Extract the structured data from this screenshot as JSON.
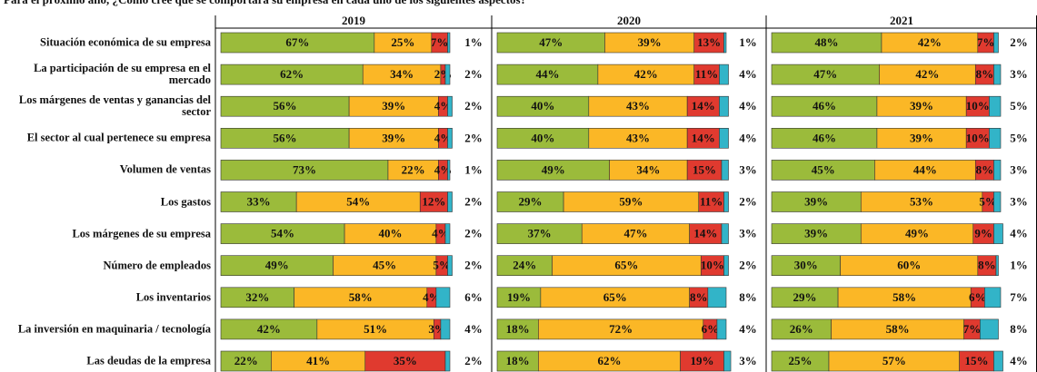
{
  "chart_data": {
    "type": "stacked_bar_h",
    "title": "Para el próximo año, ¿Cómo cree que se comportará su empresa en cada uno de los siguientes aspectos?",
    "categories": [
      "Situación económica de su empresa",
      "La participación de su empresa en el mercado",
      "Los márgenes de ventas y ganancias del sector",
      "El sector al cual pertenece su empresa",
      "Volumen de ventas",
      "Los gastos",
      "Los márgenes de su empresa",
      "Número de empleados",
      "Los inventarios",
      "La inversión en maquinaria / tecnología",
      "Las deudas de la empresa"
    ],
    "colors": [
      "#9bbb3b",
      "#fbb726",
      "#e03a2f",
      "#32b4c8"
    ],
    "panels": [
      {
        "title": "2019",
        "series": [
          {
            "values": [
              67,
              62,
              56,
              56,
              73,
              33,
              54,
              49,
              32,
              42,
              22
            ],
            "value_labels": [
              "67%",
              "62%",
              "56%",
              "56%",
              "73%",
              "33%",
              "54%",
              "49%",
              "32%",
              "42%",
              "22%"
            ]
          },
          {
            "values": [
              25,
              34,
              39,
              39,
              22,
              54,
              40,
              45,
              58,
              51,
              41
            ],
            "value_labels": [
              "25%",
              "34%",
              "39%",
              "39%",
              "22%",
              "54%",
              "40%",
              "45%",
              "58%",
              "51%",
              "41%"
            ]
          },
          {
            "values": [
              7,
              2,
              4,
              4,
              4,
              12,
              4,
              5,
              4,
              3,
              35
            ],
            "value_labels": [
              "7%",
              "2%",
              "4%",
              "4%",
              "4%",
              "12%",
              "4%",
              "5%",
              "4%",
              "3%",
              "35%"
            ]
          },
          {
            "values": [
              1,
              2,
              2,
              2,
              1,
              2,
              2,
              2,
              6,
              4,
              2
            ],
            "value_labels": [
              "1%",
              "2%",
              "2%",
              "2%",
              "1%",
              "2%",
              "2%",
              "2%",
              "6%",
              "4%",
              "2%"
            ]
          }
        ]
      },
      {
        "title": "2020",
        "series": [
          {
            "values": [
              47,
              44,
              40,
              40,
              49,
              29,
              37,
              24,
              19,
              18,
              18
            ],
            "value_labels": [
              "47%",
              "44%",
              "40%",
              "40%",
              "49%",
              "29%",
              "37%",
              "24%",
              "19%",
              "18%",
              "18%"
            ]
          },
          {
            "values": [
              39,
              42,
              43,
              43,
              34,
              59,
              47,
              65,
              65,
              72,
              62
            ],
            "value_labels": [
              "39%",
              "42%",
              "43%",
              "43%",
              "34%",
              "59%",
              "47%",
              "65%",
              "65%",
              "72%",
              "62%"
            ]
          },
          {
            "values": [
              13,
              11,
              14,
              14,
              15,
              11,
              14,
              10,
              8,
              6,
              19
            ],
            "value_labels": [
              "13%",
              "11%",
              "14%",
              "14%",
              "15%",
              "11%",
              "14%",
              "10%",
              "8%",
              "6%",
              "19%"
            ]
          },
          {
            "values": [
              1,
              4,
              4,
              4,
              3,
              2,
              3,
              2,
              8,
              4,
              3
            ],
            "value_labels": [
              "1%",
              "4%",
              "4%",
              "4%",
              "3%",
              "2%",
              "3%",
              "2%",
              "8%",
              "4%",
              "3%"
            ]
          }
        ]
      },
      {
        "title": "2021",
        "series": [
          {
            "values": [
              48,
              47,
              46,
              46,
              45,
              39,
              39,
              30,
              29,
              26,
              25
            ],
            "value_labels": [
              "48%",
              "47%",
              "46%",
              "46%",
              "45%",
              "39%",
              "39%",
              "30%",
              "29%",
              "26%",
              "25%"
            ]
          },
          {
            "values": [
              42,
              42,
              39,
              39,
              44,
              53,
              49,
              60,
              58,
              58,
              57
            ],
            "value_labels": [
              "42%",
              "42%",
              "39%",
              "39%",
              "44%",
              "53%",
              "49%",
              "60%",
              "58%",
              "58%",
              "57%"
            ]
          },
          {
            "values": [
              7,
              8,
              10,
              10,
              8,
              5,
              9,
              8,
              6,
              7,
              15
            ],
            "value_labels": [
              "7%",
              "8%",
              "10%",
              "10%",
              "8%",
              "5%",
              "9%",
              "8%",
              "6%",
              "7%",
              "15%"
            ]
          },
          {
            "values": [
              2,
              3,
              5,
              5,
              3,
              3,
              4,
              1,
              7,
              8,
              4
            ],
            "value_labels": [
              "2%",
              "3%",
              "5%",
              "5%",
              "3%",
              "3%",
              "4%",
              "1%",
              "7%",
              "8%",
              "4%"
            ]
          }
        ]
      }
    ]
  }
}
